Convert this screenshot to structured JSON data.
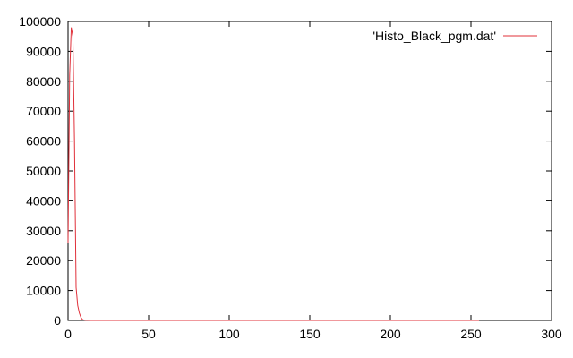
{
  "chart_data": {
    "type": "line",
    "title": "",
    "xlabel": "",
    "ylabel": "",
    "xlim": [
      0,
      300
    ],
    "ylim": [
      0,
      100000
    ],
    "x_ticks": [
      0,
      50,
      100,
      150,
      200,
      250,
      300
    ],
    "y_ticks": [
      0,
      10000,
      20000,
      30000,
      40000,
      50000,
      60000,
      70000,
      80000,
      90000,
      100000
    ],
    "grid": false,
    "legend_position": "top-right",
    "series": [
      {
        "name": "'Histo_Black_pgm.dat'",
        "color": "#e0303a",
        "x": [
          0,
          1,
          2,
          3,
          4,
          5,
          6,
          7,
          8,
          9,
          10,
          11,
          12,
          14,
          16,
          20,
          30,
          50,
          100,
          150,
          200,
          250,
          255
        ],
        "y": [
          26000,
          82000,
          98000,
          95000,
          60000,
          11000,
          5000,
          2500,
          1000,
          300,
          100,
          50,
          20,
          0,
          0,
          0,
          0,
          0,
          0,
          0,
          0,
          0,
          0
        ]
      }
    ]
  }
}
